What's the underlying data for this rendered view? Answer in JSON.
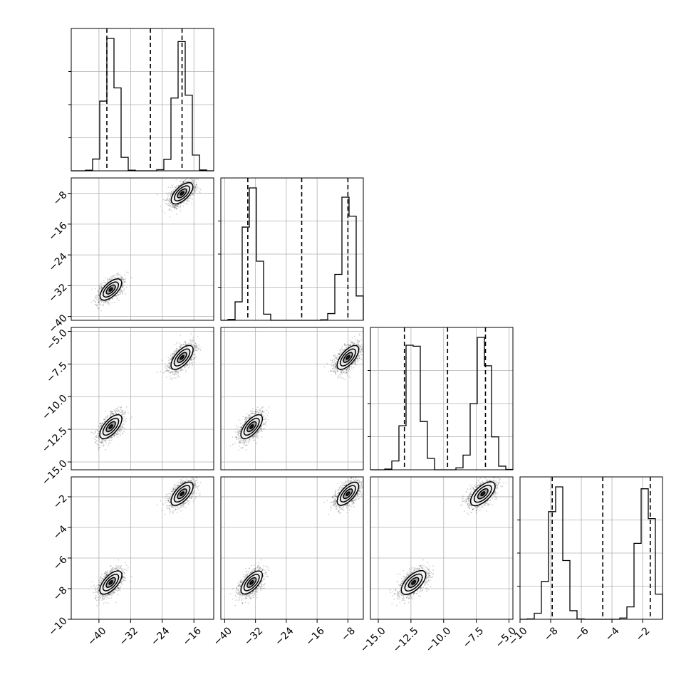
{
  "chart_data": {
    "type": "corner",
    "grid": true,
    "title": "",
    "parameters": [
      {
        "range": [
          -47,
          -11
        ],
        "ticks": [
          -40,
          -32,
          -24,
          -16
        ],
        "quantiles": [
          -38,
          -27,
          -19
        ]
      },
      {
        "range": [
          -41,
          -4
        ],
        "ticks": [
          -40,
          -32,
          -24,
          -16,
          -8
        ],
        "quantiles": [
          -34,
          -20,
          -8
        ]
      },
      {
        "range": [
          -15.6,
          -4.7
        ],
        "ticks": [
          -15.0,
          -12.5,
          -10.0,
          -7.5,
          -5.0
        ],
        "quantiles": [
          -13,
          -9.7,
          -6.8
        ]
      },
      {
        "range": [
          -10,
          -0.7
        ],
        "ticks": [
          -10,
          -8,
          -6,
          -4,
          -2
        ],
        "quantiles": [
          -7.9,
          -4.6,
          -1.5
        ]
      }
    ],
    "tick_labels": {
      "x0": [
        "−40",
        "−32",
        "−24",
        "−16"
      ],
      "x1": [
        "−40",
        "−32",
        "−24",
        "−16",
        "−8"
      ],
      "x2": [
        "−15.0",
        "−12.5",
        "−10.0",
        "−7.5",
        "−5.0"
      ],
      "x3": [
        "−10",
        "−8",
        "−6",
        "−4",
        "−2"
      ],
      "y1": [
        "−40",
        "−32",
        "−24",
        "−16",
        "−8"
      ],
      "y2": [
        "−15.0",
        "−12.5",
        "−10.0",
        "−7.5",
        "−5.0"
      ],
      "y3": [
        "−10",
        "−8",
        "−6",
        "−4",
        "−2"
      ]
    },
    "modes": [
      {
        "weight": 0.5,
        "means": [
          -37,
          -33,
          -12.3,
          -7.6
        ]
      },
      {
        "weight": 0.5,
        "means": [
          -19,
          -8.0,
          -7.0,
          -1.8
        ]
      }
    ]
  }
}
